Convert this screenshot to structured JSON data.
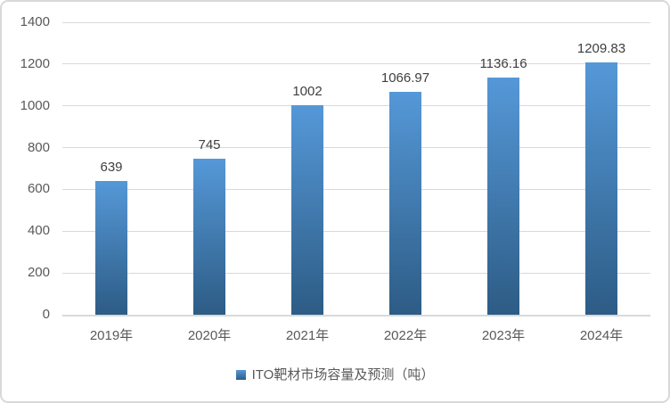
{
  "chart_data": {
    "type": "bar",
    "title": "",
    "legend": "ITO靶材市场容量及预测（吨）",
    "legend_position": "bottom",
    "categories": [
      "2019年",
      "2020年",
      "2021年",
      "2022年",
      "2023年",
      "2024年"
    ],
    "values": [
      639,
      745,
      1002,
      1066.97,
      1136.16,
      1209.83
    ],
    "data_labels": [
      "639",
      "745",
      "1002",
      "1066.97",
      "1136.16",
      "1209.83"
    ],
    "xlabel": "",
    "ylabel": "",
    "ylim": [
      0,
      1400
    ],
    "ytick_interval": 200,
    "yticks": [
      "1400",
      "1200",
      "1000",
      "800",
      "600",
      "400",
      "200",
      "0"
    ],
    "grid": true,
    "colors": {
      "bar_gradient_top": "#5598D8",
      "bar_gradient_bottom": "#2D5C85",
      "gridline": "#D9D9D9",
      "chart_border": "#D9D9D9",
      "axis_tick_label": "#595959",
      "data_label": "#3F3F3F",
      "legend_text": "#595959",
      "background": "#FFFFFF"
    }
  }
}
